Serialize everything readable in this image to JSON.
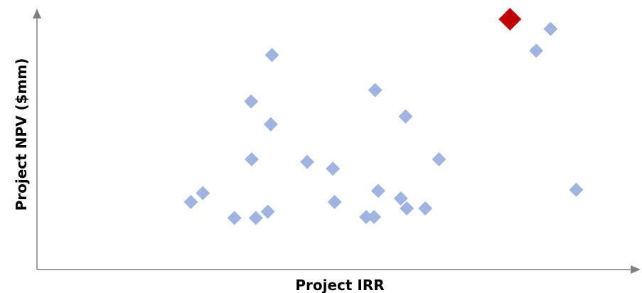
{
  "chart_data": {
    "type": "scatter",
    "xlabel": "Project IRR",
    "ylabel": "Project NPV ($mm)",
    "xlim": [
      0,
      100
    ],
    "ylim": [
      0,
      100
    ],
    "grid": false,
    "marker": "diamond",
    "colors": {
      "points": "#9fb4e0",
      "highlight": "#c00000",
      "axis": "#808080"
    },
    "series": [
      {
        "values": [
          {
            "x": 25.8,
            "y": 26.6
          },
          {
            "x": 27.8,
            "y": 30.1
          },
          {
            "x": 33.1,
            "y": 20.3
          },
          {
            "x": 36.0,
            "y": 43.4
          },
          {
            "x": 35.9,
            "y": 66.2
          },
          {
            "x": 36.7,
            "y": 20.3
          },
          {
            "x": 38.7,
            "y": 22.8
          },
          {
            "x": 39.2,
            "y": 57.2
          },
          {
            "x": 39.4,
            "y": 84.5
          },
          {
            "x": 45.3,
            "y": 42.4
          },
          {
            "x": 49.6,
            "y": 39.7
          },
          {
            "x": 49.9,
            "y": 26.6
          },
          {
            "x": 55.2,
            "y": 20.7
          },
          {
            "x": 56.5,
            "y": 20.7
          },
          {
            "x": 56.7,
            "y": 70.7
          },
          {
            "x": 57.2,
            "y": 31.0
          },
          {
            "x": 61.0,
            "y": 28.0
          },
          {
            "x": 61.8,
            "y": 60.3
          },
          {
            "x": 62.0,
            "y": 24.1
          },
          {
            "x": 65.1,
            "y": 24.1
          },
          {
            "x": 67.4,
            "y": 43.4
          },
          {
            "x": 83.7,
            "y": 86.2
          },
          {
            "x": 86.1,
            "y": 94.8
          },
          {
            "x": 90.4,
            "y": 31.4
          }
        ]
      },
      {
        "highlight": true,
        "values": [
          {
            "x": 79.3,
            "y": 98.6
          }
        ]
      }
    ]
  }
}
